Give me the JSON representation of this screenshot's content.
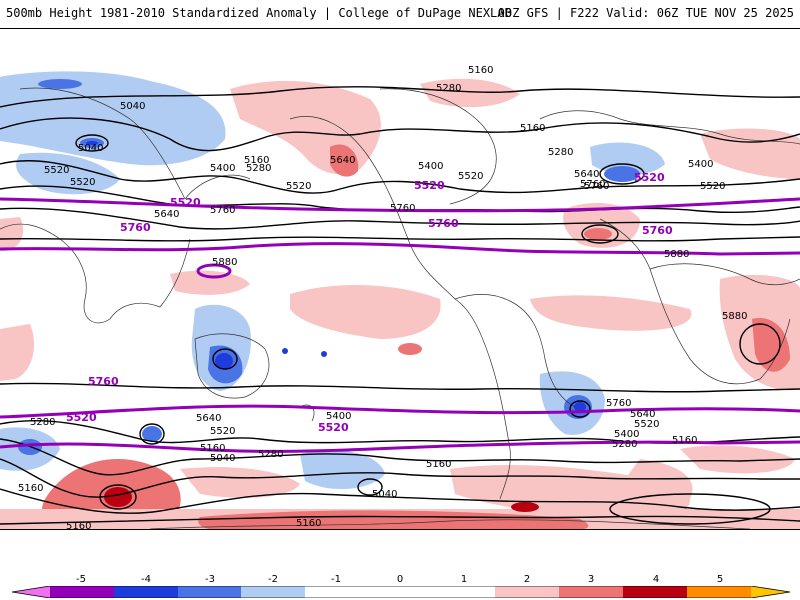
{
  "header": {
    "title_left": "500mb Height 1981-2010 Standardized Anomaly | College of DuPage NEXLAB",
    "title_right": "00Z GFS | F222 Valid: 06Z TUE NOV 25 2025"
  },
  "map": {
    "contour_labels": [
      "5160",
      "5280",
      "5040",
      "5040",
      "5160",
      "5400",
      "5280",
      "5520",
      "5520",
      "5640",
      "5760",
      "5880",
      "5400",
      "5520",
      "5640",
      "5760",
      "5520",
      "5760",
      "5880",
      "5880",
      "5160",
      "5280",
      "5640",
      "5760",
      "5520",
      "5400",
      "5640",
      "5520",
      "5280",
      "5160",
      "5400",
      "5160",
      "5040",
      "5040",
      "5160",
      "5160",
      "5160",
      "5760",
      "5640",
      "5520",
      "5280",
      "5400",
      "5160",
      "5280"
    ],
    "highlight_labels": [
      "5520",
      "5760",
      "5520",
      "5760",
      "5520",
      "5760",
      "5520",
      "5760",
      "5520"
    ],
    "colors": {
      "strong_negative": "#1e3cdc",
      "negative": "#4a73e6",
      "weak_negative": "#b0ccf2",
      "weak_positive": "#f8c4c4",
      "positive": "#ec7474",
      "strong_positive": "#b80010",
      "contour": "#000000",
      "highlight_contour": "#9400b8"
    }
  },
  "colorbar": {
    "ticks": [
      "-5",
      "-4",
      "-3",
      "-2",
      "-1",
      "0",
      "1",
      "2",
      "3",
      "4",
      "5"
    ],
    "segment_colors": [
      "#f070f0",
      "#9400b8",
      "#1e3cdc",
      "#4a73e6",
      "#b0ccf2",
      "#ffffff",
      "#f8c4c4",
      "#ec7474",
      "#b80010",
      "#ff8c00",
      "#ffc400"
    ]
  }
}
